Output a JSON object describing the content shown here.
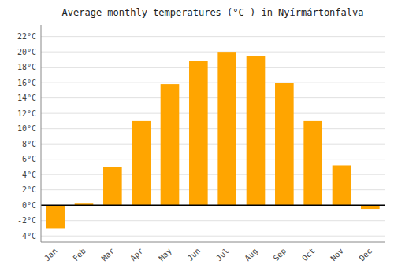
{
  "chart_data": {
    "type": "bar",
    "title": "Average monthly temperatures (°C ) in Nyírmártonfalva",
    "categories": [
      "Jan",
      "Feb",
      "Mar",
      "Apr",
      "May",
      "Jun",
      "Jul",
      "Aug",
      "Sep",
      "Oct",
      "Nov",
      "Dec"
    ],
    "values": [
      -3.0,
      0.2,
      5.0,
      11.0,
      15.8,
      18.8,
      20.0,
      19.5,
      16.0,
      11.0,
      5.2,
      -0.5
    ],
    "color": "#FFA500",
    "ylim": [
      -4.8,
      23.5
    ],
    "yticks": [
      {
        "value": -4,
        "label": "-4°C"
      },
      {
        "value": -2,
        "label": "-2°C"
      },
      {
        "value": 0,
        "label": "0°C"
      },
      {
        "value": 2,
        "label": "2°C"
      },
      {
        "value": 4,
        "label": "4°C"
      },
      {
        "value": 6,
        "label": "6°C"
      },
      {
        "value": 8,
        "label": "8°C"
      },
      {
        "value": 10,
        "label": "10°C"
      },
      {
        "value": 12,
        "label": "12°C"
      },
      {
        "value": 14,
        "label": "14°C"
      },
      {
        "value": 16,
        "label": "16°C"
      },
      {
        "value": 18,
        "label": "18°C"
      },
      {
        "value": 20,
        "label": "20°C"
      },
      {
        "value": 22,
        "label": "22°C"
      }
    ],
    "grid": true
  }
}
